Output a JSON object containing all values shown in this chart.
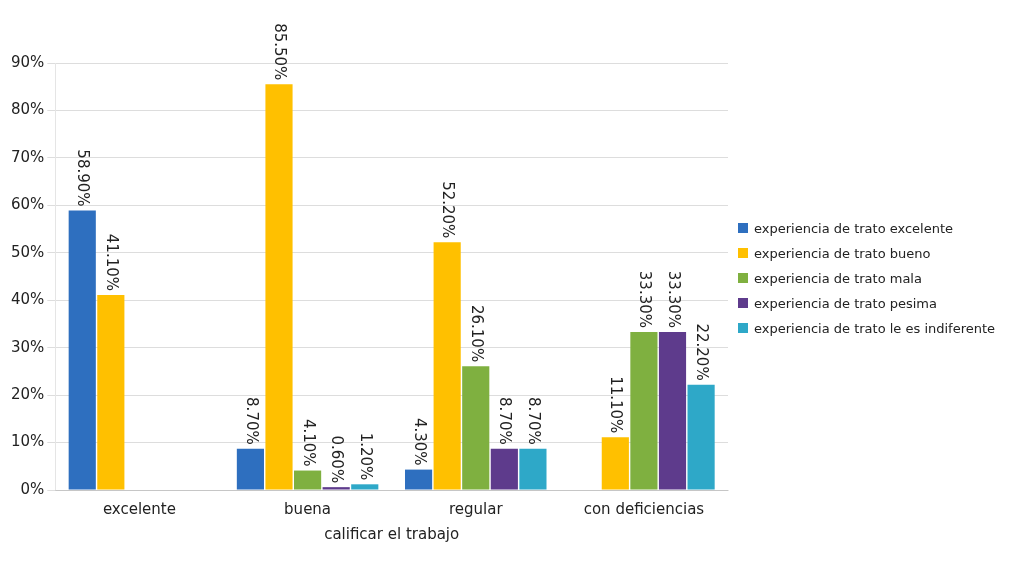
{
  "chart_data": {
    "type": "bar",
    "xlabel": "calificar el trabajo",
    "categories": [
      "excelente",
      "buena",
      "regular",
      "con deficiencias"
    ],
    "series": [
      {
        "name": "experiencia de trato excelente",
        "color": "#2e6fbf",
        "values": [
          58.9,
          8.7,
          4.3,
          null
        ],
        "value_labels": [
          "58.90%",
          "8.70%",
          "4.30%",
          null
        ]
      },
      {
        "name": "experiencia de trato bueno",
        "color": "#ffc000",
        "values": [
          41.1,
          85.5,
          52.2,
          11.1
        ],
        "value_labels": [
          "41.10%",
          "85.50%",
          "52.20%",
          "11.10%"
        ]
      },
      {
        "name": "experiencia de trato mala",
        "color": "#7fb040",
        "values": [
          null,
          4.1,
          26.1,
          33.3
        ],
        "value_labels": [
          null,
          "4.10%",
          "26.10%",
          "33.30%"
        ]
      },
      {
        "name": "experiencia de trato pesima",
        "color": "#5e3b8c",
        "values": [
          null,
          0.6,
          8.7,
          33.3
        ],
        "value_labels": [
          null,
          "0.60%",
          "8.70%",
          "33.30%"
        ]
      },
      {
        "name": "experiencia de trato le es indiferente",
        "color": "#2ea8c8",
        "values": [
          null,
          1.2,
          8.7,
          22.2
        ],
        "value_labels": [
          null,
          "1.20%",
          "8.70%",
          "22.20%"
        ]
      }
    ],
    "ylim": [
      0,
      90
    ],
    "yticks": [
      {
        "value": 0,
        "label": "0%"
      },
      {
        "value": 10,
        "label": "10%"
      },
      {
        "value": 20,
        "label": "20%"
      },
      {
        "value": 30,
        "label": "30%"
      },
      {
        "value": 40,
        "label": "40%"
      },
      {
        "value": 50,
        "label": "50%"
      },
      {
        "value": 60,
        "label": "60%"
      },
      {
        "value": 70,
        "label": "70%"
      },
      {
        "value": 80,
        "label": "80%"
      },
      {
        "value": 90,
        "label": "90%"
      }
    ],
    "grid": "y",
    "legend": "right"
  }
}
